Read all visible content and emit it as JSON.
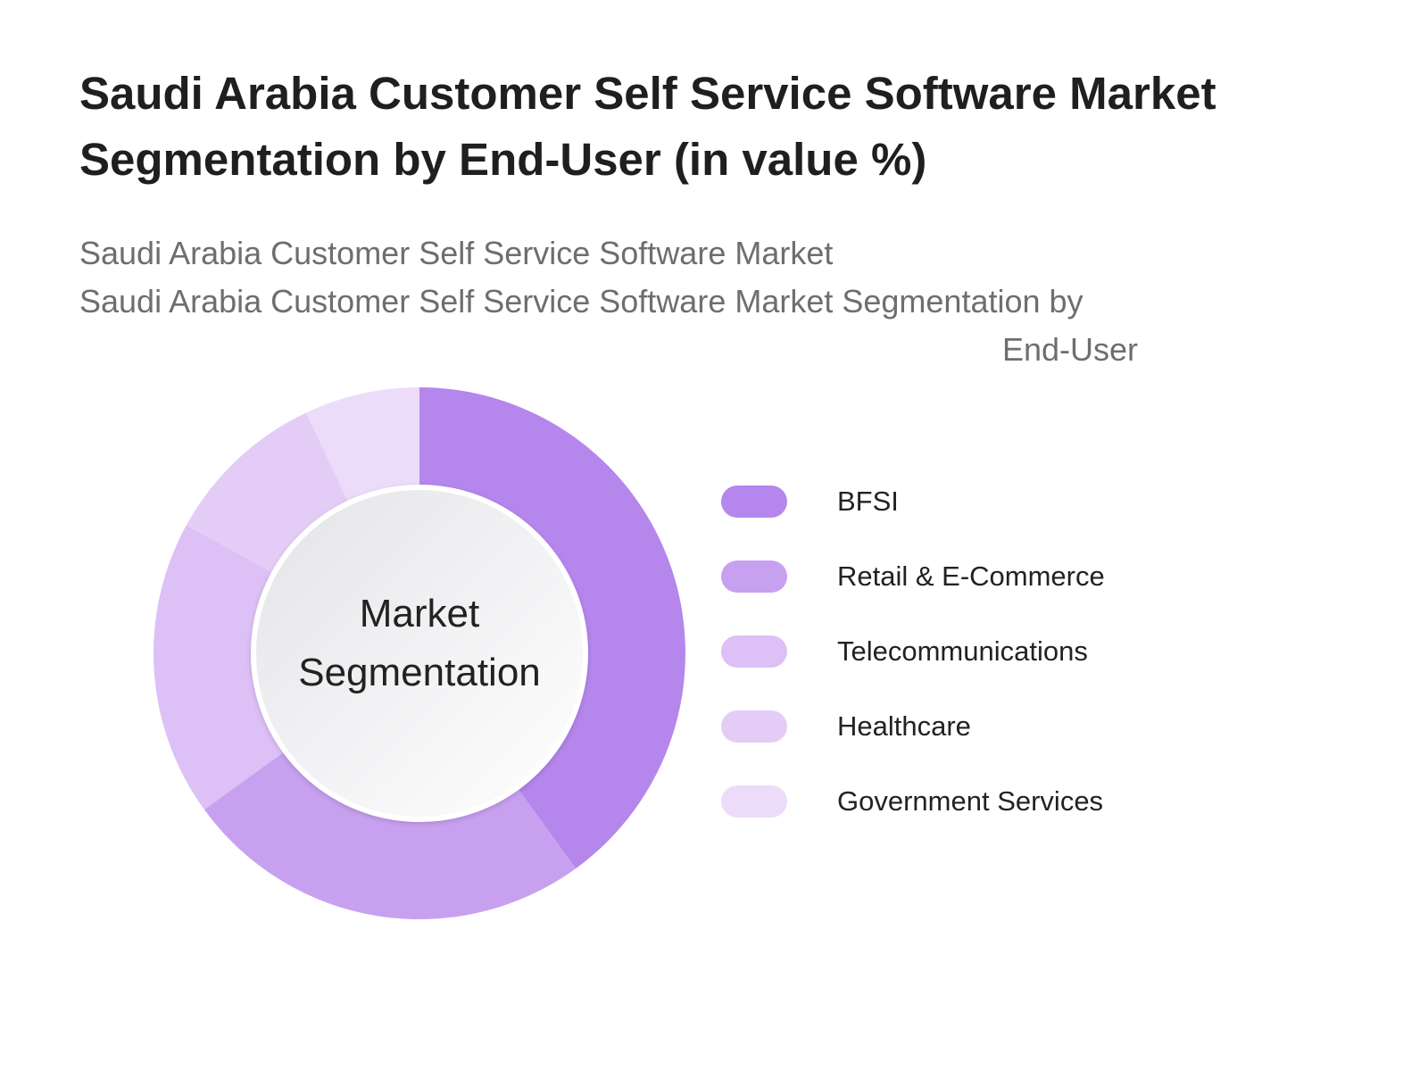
{
  "title": "Saudi Arabia Customer Self Service Software Market Segmentation by End-User (in value %)",
  "subtitle_line1": "Saudi Arabia Customer Self Service Software Market",
  "subtitle_line2": "Saudi Arabia Customer Self Service Software Market Segmentation by",
  "subtitle_line3": "End-User",
  "center_label_line1": "Market",
  "center_label_line2": "Segmentation",
  "chart_data": {
    "type": "pie",
    "variant": "donut",
    "categories": [
      "BFSI",
      "Retail & E-Commerce",
      "Telecommunications",
      "Healthcare",
      "Government Services"
    ],
    "values": [
      40,
      25,
      18,
      10,
      7
    ],
    "colors": [
      "#b586ec",
      "#c8a0f0",
      "#dcc0f6",
      "#e3cdf7",
      "#ecdcfa"
    ],
    "legend_position": "right"
  }
}
